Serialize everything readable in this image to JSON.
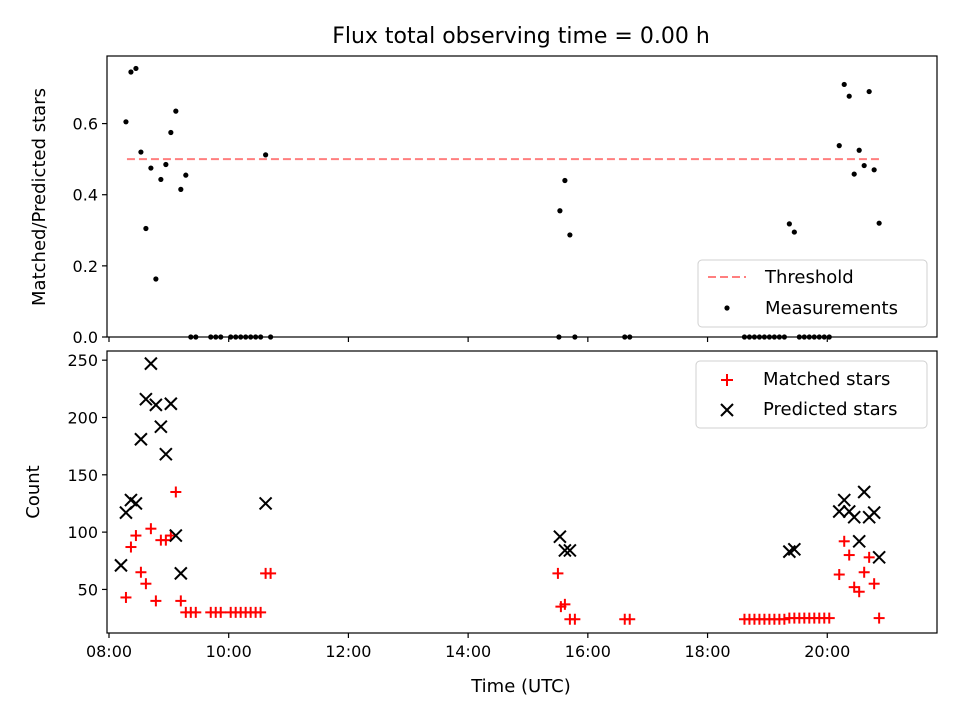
{
  "title": "Flux total observing time = 0.00 h",
  "chart_data": [
    {
      "type": "scatter",
      "ylabel": "Matched/Predicted stars",
      "xlabel": "",
      "xlim": [
        "07:58",
        "21:50"
      ],
      "ylim": [
        0,
        0.79
      ],
      "y_ticks": [
        0.0,
        0.2,
        0.4,
        0.6
      ],
      "y_tick_labels": [
        "0.0",
        "0.2",
        "0.4",
        "0.6"
      ],
      "legend": {
        "position": "bottom-right",
        "entries": [
          "Threshold",
          "Measurements"
        ]
      },
      "grid": false,
      "threshold": {
        "name": "Threshold",
        "y": 0.5,
        "x_range": [
          "08:18",
          "20:53"
        ],
        "color": "#ff7f7f",
        "style": "dashed"
      },
      "series": [
        {
          "name": "Measurements",
          "color": "#000000",
          "marker": "dot",
          "points": [
            [
              "08:17",
              0.605
            ],
            [
              "08:22",
              0.745
            ],
            [
              "08:27",
              0.755
            ],
            [
              "08:32",
              0.52
            ],
            [
              "08:37",
              0.305
            ],
            [
              "08:42",
              0.475
            ],
            [
              "08:47",
              0.163
            ],
            [
              "08:52",
              0.443
            ],
            [
              "08:57",
              0.485
            ],
            [
              "09:02",
              0.575
            ],
            [
              "09:07",
              0.635
            ],
            [
              "09:12",
              0.415
            ],
            [
              "09:17",
              0.455
            ],
            [
              "09:22",
              0.0
            ],
            [
              "09:27",
              0.0
            ],
            [
              "09:42",
              0.0
            ],
            [
              "09:47",
              0.0
            ],
            [
              "09:52",
              0.0
            ],
            [
              "10:02",
              0.0
            ],
            [
              "10:07",
              0.0
            ],
            [
              "10:12",
              0.0
            ],
            [
              "10:17",
              0.0
            ],
            [
              "10:22",
              0.0
            ],
            [
              "10:27",
              0.0
            ],
            [
              "10:32",
              0.0
            ],
            [
              "10:37",
              0.512
            ],
            [
              "10:42",
              0.0
            ],
            [
              "15:31",
              0.0
            ],
            [
              "15:32",
              0.355
            ],
            [
              "15:37",
              0.44
            ],
            [
              "15:42",
              0.287
            ],
            [
              "15:47",
              0.0
            ],
            [
              "16:37",
              0.0
            ],
            [
              "16:42",
              0.0
            ],
            [
              "18:37",
              0.0
            ],
            [
              "18:42",
              0.0
            ],
            [
              "18:47",
              0.0
            ],
            [
              "18:52",
              0.0
            ],
            [
              "18:57",
              0.0
            ],
            [
              "19:02",
              0.0
            ],
            [
              "19:07",
              0.0
            ],
            [
              "19:12",
              0.0
            ],
            [
              "19:17",
              0.0
            ],
            [
              "19:22",
              0.318
            ],
            [
              "19:27",
              0.295
            ],
            [
              "19:32",
              0.0
            ],
            [
              "19:37",
              0.0
            ],
            [
              "19:42",
              0.0
            ],
            [
              "19:47",
              0.0
            ],
            [
              "19:52",
              0.0
            ],
            [
              "19:57",
              0.0
            ],
            [
              "20:02",
              0.0
            ],
            [
              "20:12",
              0.538
            ],
            [
              "20:17",
              0.71
            ],
            [
              "20:22",
              0.677
            ],
            [
              "20:27",
              0.458
            ],
            [
              "20:32",
              0.525
            ],
            [
              "20:37",
              0.482
            ],
            [
              "20:42",
              0.69
            ],
            [
              "20:47",
              0.47
            ],
            [
              "20:52",
              0.32
            ]
          ]
        }
      ]
    },
    {
      "type": "scatter",
      "ylabel": "Count",
      "xlabel": "Time (UTC)",
      "xlim": [
        "07:58",
        "21:50"
      ],
      "ylim": [
        12,
        258
      ],
      "y_ticks": [
        50,
        100,
        150,
        200,
        250
      ],
      "y_tick_labels": [
        "50",
        "100",
        "150",
        "200",
        "250"
      ],
      "x_ticks": [
        "08:00",
        "10:00",
        "12:00",
        "14:00",
        "16:00",
        "18:00",
        "20:00"
      ],
      "x_tick_labels": [
        "08:00",
        "10:00",
        "12:00",
        "14:00",
        "16:00",
        "18:00",
        "20:00"
      ],
      "legend": {
        "position": "top-right",
        "entries": [
          "Matched stars",
          "Predicted stars"
        ]
      },
      "grid": false,
      "series": [
        {
          "name": "Matched stars",
          "color": "#ff0000",
          "marker": "plus",
          "points": [
            [
              "08:17",
              43
            ],
            [
              "08:22",
              87
            ],
            [
              "08:27",
              97
            ],
            [
              "08:32",
              65
            ],
            [
              "08:37",
              55
            ],
            [
              "08:42",
              103
            ],
            [
              "08:47",
              40
            ],
            [
              "08:52",
              93
            ],
            [
              "08:57",
              93
            ],
            [
              "09:02",
              97
            ],
            [
              "09:07",
              135
            ],
            [
              "09:12",
              40
            ],
            [
              "09:17",
              30
            ],
            [
              "09:22",
              30
            ],
            [
              "09:27",
              30
            ],
            [
              "09:42",
              30
            ],
            [
              "09:47",
              30
            ],
            [
              "09:52",
              30
            ],
            [
              "10:02",
              30
            ],
            [
              "10:07",
              30
            ],
            [
              "10:12",
              30
            ],
            [
              "10:17",
              30
            ],
            [
              "10:22",
              30
            ],
            [
              "10:27",
              30
            ],
            [
              "10:32",
              30
            ],
            [
              "10:37",
              64
            ],
            [
              "10:42",
              64
            ],
            [
              "15:30",
              64
            ],
            [
              "15:33",
              35
            ],
            [
              "15:37",
              37
            ],
            [
              "15:42",
              24
            ],
            [
              "15:47",
              24
            ],
            [
              "16:37",
              24
            ],
            [
              "16:42",
              24
            ],
            [
              "18:37",
              24
            ],
            [
              "18:42",
              24
            ],
            [
              "18:47",
              24
            ],
            [
              "18:52",
              24
            ],
            [
              "18:57",
              24
            ],
            [
              "19:02",
              24
            ],
            [
              "19:07",
              24
            ],
            [
              "19:12",
              24
            ],
            [
              "19:17",
              24
            ],
            [
              "19:22",
              25
            ],
            [
              "19:27",
              25
            ],
            [
              "19:32",
              25
            ],
            [
              "19:37",
              25
            ],
            [
              "19:42",
              25
            ],
            [
              "19:47",
              25
            ],
            [
              "19:52",
              25
            ],
            [
              "19:57",
              25
            ],
            [
              "20:02",
              25
            ],
            [
              "20:12",
              63
            ],
            [
              "20:17",
              92
            ],
            [
              "20:22",
              80
            ],
            [
              "20:27",
              52
            ],
            [
              "20:32",
              48
            ],
            [
              "20:37",
              65
            ],
            [
              "20:42",
              78
            ],
            [
              "20:47",
              55
            ],
            [
              "20:52",
              25
            ]
          ]
        },
        {
          "name": "Predicted stars",
          "color": "#000000",
          "marker": "x",
          "points": [
            [
              "08:12",
              71
            ],
            [
              "08:17",
              117
            ],
            [
              "08:22",
              128
            ],
            [
              "08:27",
              125
            ],
            [
              "08:32",
              181
            ],
            [
              "08:37",
              216
            ],
            [
              "08:42",
              247
            ],
            [
              "08:47",
              211
            ],
            [
              "08:52",
              192
            ],
            [
              "08:57",
              168
            ],
            [
              "09:02",
              212
            ],
            [
              "09:07",
              97
            ],
            [
              "09:12",
              64
            ],
            [
              "10:37",
              125
            ],
            [
              "15:32",
              96
            ],
            [
              "15:37",
              84
            ],
            [
              "15:42",
              84
            ],
            [
              "19:22",
              83
            ],
            [
              "19:27",
              85
            ],
            [
              "20:12",
              118
            ],
            [
              "20:17",
              128
            ],
            [
              "20:22",
              118
            ],
            [
              "20:27",
              113
            ],
            [
              "20:32",
              92
            ],
            [
              "20:37",
              135
            ],
            [
              "20:42",
              113
            ],
            [
              "20:47",
              117
            ],
            [
              "20:52",
              78
            ]
          ]
        }
      ]
    }
  ]
}
